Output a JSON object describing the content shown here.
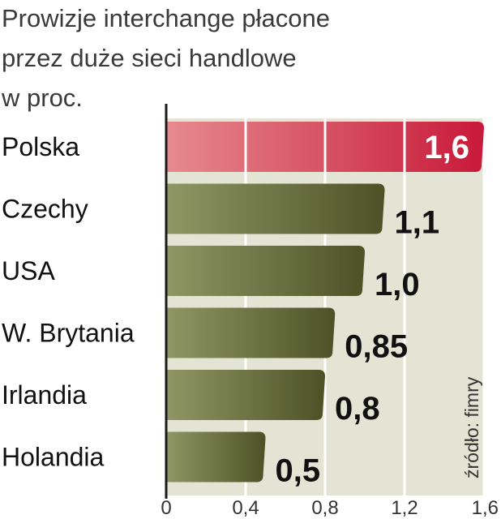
{
  "chart_data": {
    "type": "bar",
    "orientation": "horizontal",
    "title_lines": [
      "Prowizje interchange płacone",
      "przez duże sieci handlowe",
      "w proc."
    ],
    "categories": [
      "Polska",
      "Czechy",
      "USA",
      "W. Brytania",
      "Irlandia",
      "Holandia"
    ],
    "values": [
      1.6,
      1.1,
      1.0,
      0.85,
      0.8,
      0.5
    ],
    "value_labels": [
      "1,6",
      "1,1",
      "1,0",
      "0,85",
      "0,8",
      "0,5"
    ],
    "xlim": [
      0,
      1.6
    ],
    "x_ticks": [
      0,
      0.4,
      0.8,
      1.2,
      1.6
    ],
    "x_tick_labels": [
      "0",
      "0,4",
      "0,8",
      "1,2",
      "1,6"
    ],
    "highlight_category": "Polska",
    "source": "źródło: fimry",
    "grid": true
  },
  "colors": {
    "bar_start": "#8f9765",
    "bar_end": "#4c5226",
    "highlight_start": "#e68a8f",
    "highlight_end": "#c8193a",
    "panel": "#e3e4d3",
    "axis": "#1a1a1a",
    "grid": "#ffffff"
  }
}
